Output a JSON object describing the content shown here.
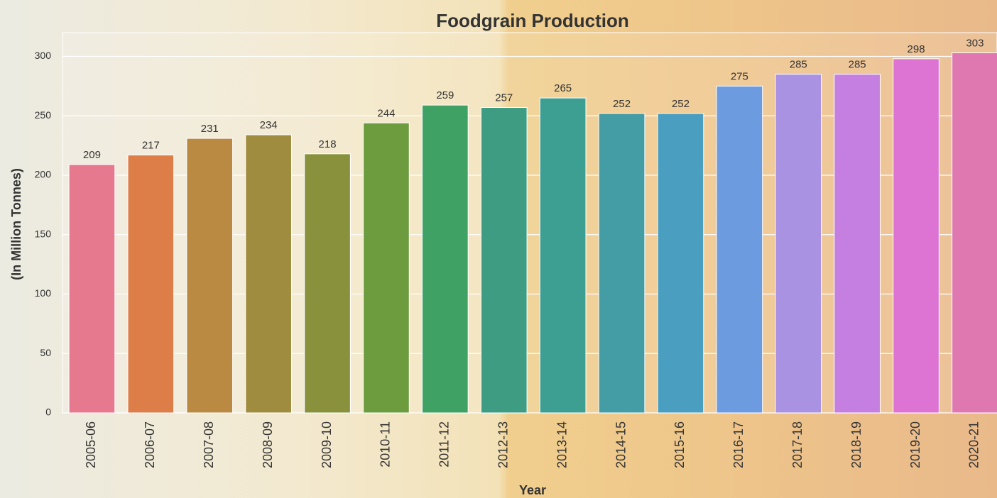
{
  "chart_data": {
    "type": "bar",
    "title": "Foodgrain Production",
    "x_label": "Year",
    "y_label": "(In Million Tonnes)",
    "categories": [
      "2005-06",
      "2006-07",
      "2007-08",
      "2008-09",
      "2009-10",
      "2010-11",
      "2011-12",
      "2012-13",
      "2013-14",
      "2014-15",
      "2015-16",
      "2016-17",
      "2017-18",
      "2018-19",
      "2019-20",
      "2020-21"
    ],
    "values": [
      209,
      217,
      231,
      234,
      218,
      244,
      259,
      257,
      265,
      252,
      252,
      275,
      285,
      285,
      298,
      303
    ],
    "colors": [
      "#e7798f",
      "#dd7d48",
      "#bb8a42",
      "#a08c3e",
      "#8a913c",
      "#6d9c3f",
      "#3fa163",
      "#3e9c83",
      "#3d9e92",
      "#449ca5",
      "#4a9ec0",
      "#6d9be0",
      "#a992e2",
      "#c57fe1",
      "#dd73d3",
      "#df78b0"
    ],
    "ylim": [
      0,
      320
    ],
    "yticks": [
      0,
      50,
      100,
      150,
      200,
      250,
      300
    ],
    "grid": true
  }
}
